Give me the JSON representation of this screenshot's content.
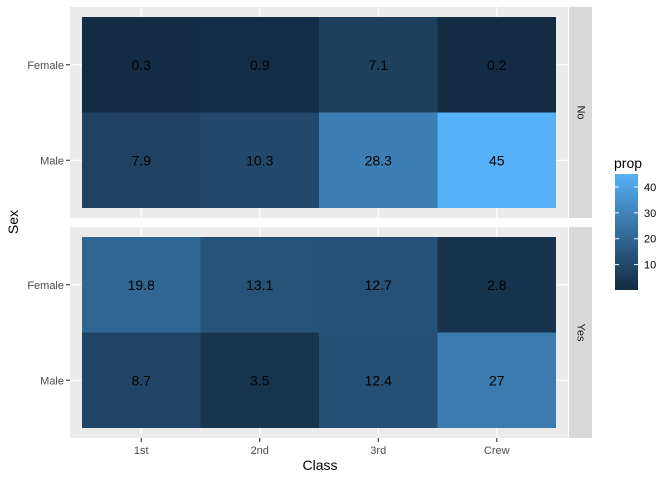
{
  "chart_data": {
    "type": "heatmap",
    "xlabel": "Class",
    "ylabel": "Sex",
    "x_categories": [
      "1st",
      "2nd",
      "3rd",
      "Crew"
    ],
    "y_categories": [
      "Female",
      "Male"
    ],
    "facets": [
      {
        "label": "No",
        "rows": [
          {
            "name": "Female",
            "values": [
              0.3,
              0.9,
              7.1,
              0.2
            ]
          },
          {
            "name": "Male",
            "values": [
              7.9,
              10.3,
              28.3,
              45
            ]
          }
        ]
      },
      {
        "label": "Yes",
        "rows": [
          {
            "name": "Female",
            "values": [
              19.8,
              13.1,
              12.7,
              2.8
            ]
          },
          {
            "name": "Male",
            "values": [
              8.7,
              3.5,
              12.4,
              27
            ]
          }
        ]
      }
    ],
    "legend": {
      "title": "prop",
      "ticks": [
        10,
        20,
        30,
        40
      ],
      "min": 0.2,
      "max": 45,
      "low_color": "#132b43",
      "high_color": "#56b1f7"
    },
    "colors": {
      "panel_background": "#ebebeb",
      "grid": "#ffffff",
      "strip_background": "#d9d9d9",
      "tick": "#333333"
    }
  }
}
